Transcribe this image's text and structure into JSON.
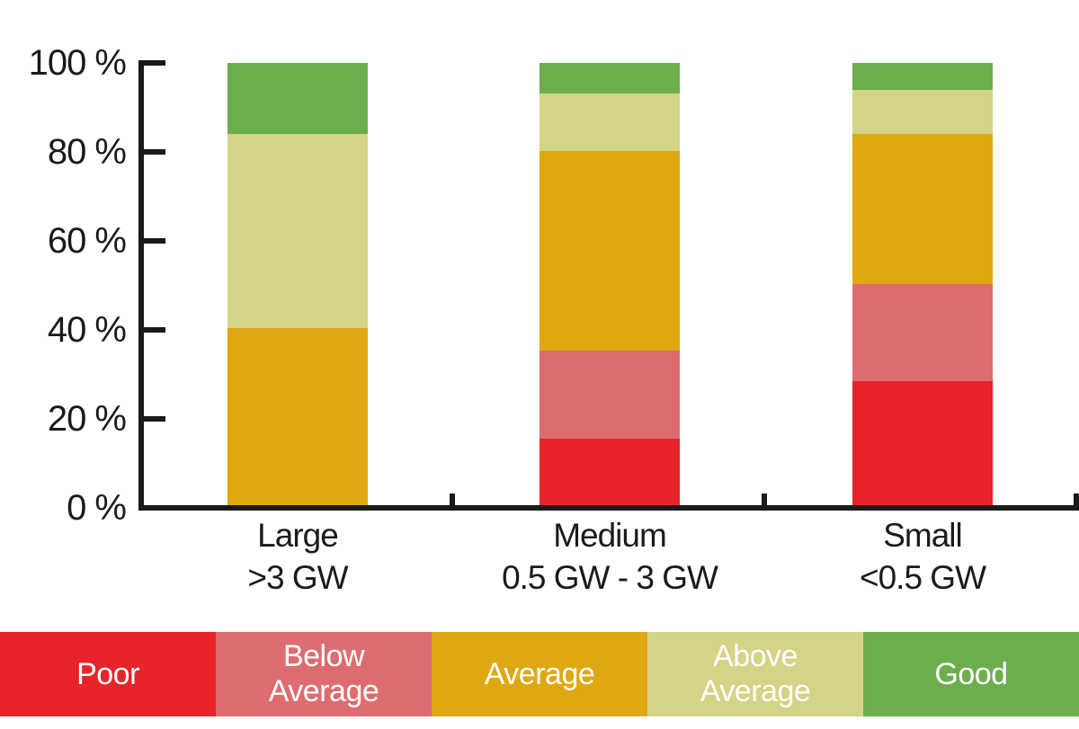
{
  "figure": {
    "background_color": "#ffffff",
    "axis_color": "#1a1a1a",
    "label_text_color": "#1a1a1a",
    "legend_text_color": "#ffffff"
  },
  "chart_data": {
    "type": "bar",
    "stacked": true,
    "orientation": "vertical",
    "value_unit": "%",
    "title": "",
    "xlabel": "",
    "ylabel": "",
    "grid": false,
    "ylim": [
      0,
      100
    ],
    "categories": [
      {
        "line1": "Large",
        "line2": ">3 GW"
      },
      {
        "line1": "Medium",
        "line2": "0.5 GW - 3 GW"
      },
      {
        "line1": "Small",
        "line2": "<0.5 GW"
      }
    ],
    "series": [
      {
        "name": "Poor",
        "color": "#e82329",
        "values": [
          0,
          15,
          28
        ]
      },
      {
        "name": "Below Average",
        "color": "#dd6c70",
        "values": [
          0,
          20,
          22
        ]
      },
      {
        "name": "Average",
        "color": "#dfa712",
        "values": [
          40,
          45,
          34
        ]
      },
      {
        "name": "Above Average",
        "color": "#d5d385",
        "values": [
          44,
          13,
          10
        ]
      },
      {
        "name": "Good",
        "color": "#6cae4c",
        "values": [
          16,
          7,
          6
        ]
      }
    ],
    "y_axis": {
      "ticks": [
        {
          "value": 100,
          "label": "100 %"
        },
        {
          "value": 80,
          "label": "80 %"
        },
        {
          "value": 60,
          "label": "60 %"
        },
        {
          "value": 40,
          "label": "40 %"
        },
        {
          "value": 20,
          "label": "20 %"
        },
        {
          "value": 0,
          "label": "0 %"
        }
      ]
    },
    "legend": {
      "position": "bottom",
      "items": [
        {
          "lines": [
            "Poor"
          ],
          "color": "#e82329"
        },
        {
          "lines": [
            "Below",
            "Average"
          ],
          "color": "#dd6c70"
        },
        {
          "lines": [
            "Average"
          ],
          "color": "#dfa712"
        },
        {
          "lines": [
            "Above",
            "Average"
          ],
          "color": "#d5d385"
        },
        {
          "lines": [
            "Good"
          ],
          "color": "#6cae4c"
        }
      ]
    }
  }
}
